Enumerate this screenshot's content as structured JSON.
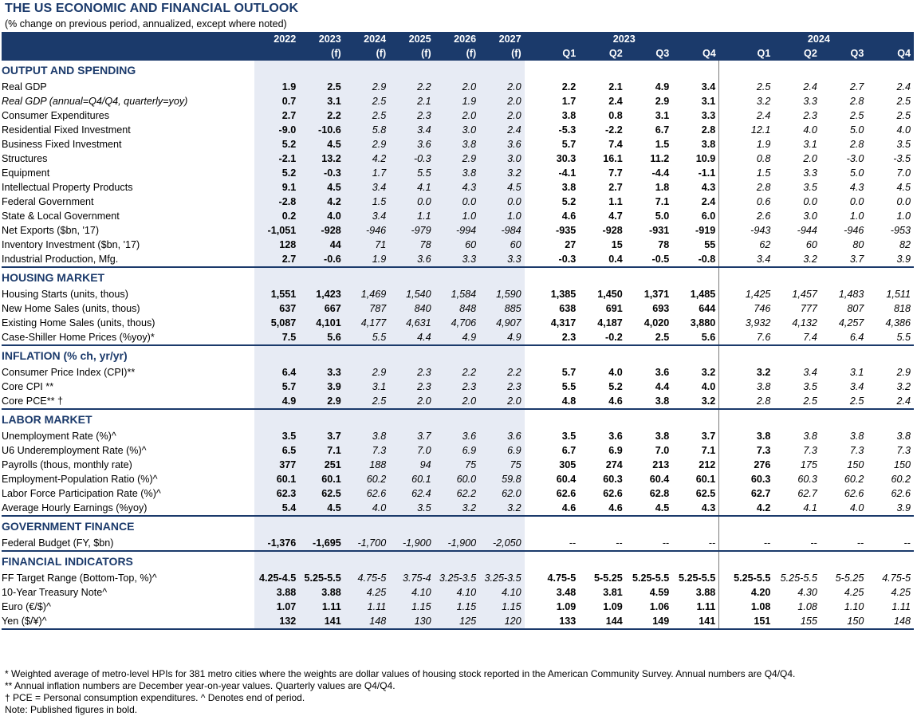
{
  "title": "THE US ECONOMIC AND FINANCIAL OUTLOOK",
  "subtitle": "(% change on previous period, annualized, except where noted)",
  "header": {
    "years": [
      {
        "year": "2022",
        "f": ""
      },
      {
        "year": "2023",
        "f": "(f)"
      },
      {
        "year": "2024",
        "f": "(f)"
      },
      {
        "year": "2025",
        "f": "(f)"
      },
      {
        "year": "2026",
        "f": "(f)"
      },
      {
        "year": "2027",
        "f": "(f)"
      }
    ],
    "q_group_1": "2023",
    "q_group_2": "2024",
    "quarters": [
      "Q1",
      "Q2",
      "Q3",
      "Q4",
      "Q1",
      "Q2",
      "Q3",
      "Q4"
    ]
  },
  "sections": [
    {
      "title": "OUTPUT AND SPENDING",
      "rows": [
        {
          "label": "Real GDP",
          "indent": 1,
          "vals": [
            "1.9",
            "2.5",
            "2.9",
            "2.2",
            "2.0",
            "2.0",
            "2.2",
            "2.1",
            "4.9",
            "3.4",
            "2.5",
            "2.4",
            "2.7",
            "2.4"
          ]
        },
        {
          "label": "Real GDP (annual=Q4/Q4, quarterly=yoy)",
          "indent": 1,
          "italic_label": true,
          "vals": [
            "0.7",
            "3.1",
            "2.5",
            "2.1",
            "1.9",
            "2.0",
            "1.7",
            "2.4",
            "2.9",
            "3.1",
            "3.2",
            "3.3",
            "2.8",
            "2.5"
          ]
        },
        {
          "label": "Consumer Expenditures",
          "indent": 2,
          "vals": [
            "2.7",
            "2.2",
            "2.5",
            "2.3",
            "2.0",
            "2.0",
            "3.8",
            "0.8",
            "3.1",
            "3.3",
            "2.4",
            "2.3",
            "2.5",
            "2.5"
          ]
        },
        {
          "label": "Residential Fixed Investment",
          "indent": 2,
          "vals": [
            "-9.0",
            "-10.6",
            "5.8",
            "3.4",
            "3.0",
            "2.4",
            "-5.3",
            "-2.2",
            "6.7",
            "2.8",
            "12.1",
            "4.0",
            "5.0",
            "4.0"
          ]
        },
        {
          "label": "Business Fixed Investment",
          "indent": 2,
          "vals": [
            "5.2",
            "4.5",
            "2.9",
            "3.6",
            "3.8",
            "3.6",
            "5.7",
            "7.4",
            "1.5",
            "3.8",
            "1.9",
            "3.1",
            "2.8",
            "3.5"
          ]
        },
        {
          "label": "Structures",
          "indent": 3,
          "vals": [
            "-2.1",
            "13.2",
            "4.2",
            "-0.3",
            "2.9",
            "3.0",
            "30.3",
            "16.1",
            "11.2",
            "10.9",
            "0.8",
            "2.0",
            "-3.0",
            "-3.5"
          ]
        },
        {
          "label": "Equipment",
          "indent": 3,
          "vals": [
            "5.2",
            "-0.3",
            "1.7",
            "5.5",
            "3.8",
            "3.2",
            "-4.1",
            "7.7",
            "-4.4",
            "-1.1",
            "1.5",
            "3.3",
            "5.0",
            "7.0"
          ]
        },
        {
          "label": "Intellectual Property Products",
          "indent": 3,
          "vals": [
            "9.1",
            "4.5",
            "3.4",
            "4.1",
            "4.3",
            "4.5",
            "3.8",
            "2.7",
            "1.8",
            "4.3",
            "2.8",
            "3.5",
            "4.3",
            "4.5"
          ]
        },
        {
          "label": "Federal Government",
          "indent": 2,
          "vals": [
            "-2.8",
            "4.2",
            "1.5",
            "0.0",
            "0.0",
            "0.0",
            "5.2",
            "1.1",
            "7.1",
            "2.4",
            "0.6",
            "0.0",
            "0.0",
            "0.0"
          ]
        },
        {
          "label": "State & Local Government",
          "indent": 2,
          "vals": [
            "0.2",
            "4.0",
            "3.4",
            "1.1",
            "1.0",
            "1.0",
            "4.6",
            "4.7",
            "5.0",
            "6.0",
            "2.6",
            "3.0",
            "1.0",
            "1.0"
          ]
        },
        {
          "label": "Net Exports ($bn, '17)",
          "indent": 2,
          "vals": [
            "-1,051",
            "-928",
            "-946",
            "-979",
            "-994",
            "-984",
            "-935",
            "-928",
            "-931",
            "-919",
            "-943",
            "-944",
            "-946",
            "-953"
          ]
        },
        {
          "label": "Inventory Investment ($bn, '17)",
          "indent": 2,
          "vals": [
            "128",
            "44",
            "71",
            "78",
            "60",
            "60",
            "27",
            "15",
            "78",
            "55",
            "62",
            "60",
            "80",
            "82"
          ]
        },
        {
          "label": "Industrial Production, Mfg.",
          "indent": 1,
          "vals": [
            "2.7",
            "-0.6",
            "1.9",
            "3.6",
            "3.3",
            "3.3",
            "-0.3",
            "0.4",
            "-0.5",
            "-0.8",
            "3.4",
            "3.2",
            "3.7",
            "3.9"
          ]
        }
      ]
    },
    {
      "title": "HOUSING MARKET",
      "rows": [
        {
          "label": "Housing Starts (units, thous)",
          "indent": 1,
          "vals": [
            "1,551",
            "1,423",
            "1,469",
            "1,540",
            "1,584",
            "1,590",
            "1,385",
            "1,450",
            "1,371",
            "1,485",
            "1,425",
            "1,457",
            "1,483",
            "1,511"
          ]
        },
        {
          "label": "New Home Sales (units, thous)",
          "indent": 1,
          "vals": [
            "637",
            "667",
            "787",
            "840",
            "848",
            "885",
            "638",
            "691",
            "693",
            "644",
            "746",
            "777",
            "807",
            "818"
          ]
        },
        {
          "label": "Existing Home Sales (units, thous)",
          "indent": 1,
          "vals": [
            "5,087",
            "4,101",
            "4,177",
            "4,631",
            "4,706",
            "4,907",
            "4,317",
            "4,187",
            "4,020",
            "3,880",
            "3,932",
            "4,132",
            "4,257",
            "4,386"
          ]
        },
        {
          "label": "Case-Shiller Home Prices (%yoy)*",
          "indent": 1,
          "vals": [
            "7.5",
            "5.6",
            "5.5",
            "4.4",
            "4.9",
            "4.9",
            "2.3",
            "-0.2",
            "2.5",
            "5.6",
            "7.6",
            "7.4",
            "6.4",
            "5.5"
          ]
        }
      ]
    },
    {
      "title": "INFLATION (% ch, yr/yr)",
      "rows": [
        {
          "label": "Consumer Price Index (CPI)**",
          "indent": 1,
          "bold_q24_first": true,
          "vals": [
            "6.4",
            "3.3",
            "2.9",
            "2.3",
            "2.2",
            "2.2",
            "5.7",
            "4.0",
            "3.6",
            "3.2",
            "3.2",
            "3.4",
            "3.1",
            "2.9"
          ]
        },
        {
          "label": "Core CPI **",
          "indent": 1,
          "vals": [
            "5.7",
            "3.9",
            "3.1",
            "2.3",
            "2.3",
            "2.3",
            "5.5",
            "5.2",
            "4.4",
            "4.0",
            "3.8",
            "3.5",
            "3.4",
            "3.2"
          ]
        },
        {
          "label": "Core PCE** †",
          "indent": 1,
          "vals": [
            "4.9",
            "2.9",
            "2.5",
            "2.0",
            "2.0",
            "2.0",
            "4.8",
            "4.6",
            "3.8",
            "3.2",
            "2.8",
            "2.5",
            "2.5",
            "2.4"
          ]
        }
      ]
    },
    {
      "title": "LABOR MARKET",
      "rows": [
        {
          "label": "Unemployment Rate (%)^",
          "indent": 1,
          "bold_q24_first": true,
          "vals": [
            "3.5",
            "3.7",
            "3.8",
            "3.7",
            "3.6",
            "3.6",
            "3.5",
            "3.6",
            "3.8",
            "3.7",
            "3.8",
            "3.8",
            "3.8",
            "3.8"
          ]
        },
        {
          "label": "U6 Underemployment Rate (%)^",
          "indent": 1,
          "bold_q24_first": true,
          "vals": [
            "6.5",
            "7.1",
            "7.3",
            "7.0",
            "6.9",
            "6.9",
            "6.7",
            "6.9",
            "7.0",
            "7.1",
            "7.3",
            "7.3",
            "7.3",
            "7.3"
          ]
        },
        {
          "label": "Payrolls (thous, monthly rate)",
          "indent": 1,
          "bold_q24_first": true,
          "vals": [
            "377",
            "251",
            "188",
            "94",
            "75",
            "75",
            "305",
            "274",
            "213",
            "212",
            "276",
            "175",
            "150",
            "150"
          ]
        },
        {
          "label": "Employment-Population Ratio (%)^",
          "indent": 1,
          "bold_q24_first": true,
          "vals": [
            "60.1",
            "60.1",
            "60.2",
            "60.1",
            "60.0",
            "59.8",
            "60.4",
            "60.3",
            "60.4",
            "60.1",
            "60.3",
            "60.3",
            "60.2",
            "60.2"
          ]
        },
        {
          "label": "Labor Force Participation Rate (%)^",
          "indent": 1,
          "bold_q24_first": true,
          "vals": [
            "62.3",
            "62.5",
            "62.6",
            "62.4",
            "62.2",
            "62.0",
            "62.6",
            "62.6",
            "62.8",
            "62.5",
            "62.7",
            "62.7",
            "62.6",
            "62.6"
          ]
        },
        {
          "label": "Average Hourly Earnings (%yoy)",
          "indent": 1,
          "bold_q24_first": true,
          "vals": [
            "5.4",
            "4.5",
            "4.0",
            "3.5",
            "3.2",
            "3.2",
            "4.6",
            "4.6",
            "4.5",
            "4.3",
            "4.2",
            "4.1",
            "4.0",
            "3.9"
          ]
        }
      ]
    },
    {
      "title": "GOVERNMENT FINANCE",
      "rows": [
        {
          "label": "Federal Budget (FY, $bn)",
          "indent": 1,
          "quarter_plain": true,
          "vals": [
            "-1,376",
            "-1,695",
            "-1,700",
            "-1,900",
            "-1,900",
            "-2,050",
            "--",
            "--",
            "--",
            "--",
            "--",
            "--",
            "--",
            "--"
          ]
        }
      ]
    },
    {
      "title": "FINANCIAL INDICATORS",
      "rows": [
        {
          "label": "FF Target Range (Bottom-Top, %)^",
          "indent": 1,
          "bold_q24_first": true,
          "vals": [
            "4.25-4.5",
            "5.25-5.5",
            "4.75-5",
            "3.75-4",
            "3.25-3.5",
            "3.25-3.5",
            "4.75-5",
            "5-5.25",
            "5.25-5.5",
            "5.25-5.5",
            "5.25-5.5",
            "5.25-5.5",
            "5-5.25",
            "4.75-5"
          ]
        },
        {
          "label": "10-Year Treasury Note^",
          "indent": 1,
          "bold_q24_first": true,
          "vals": [
            "3.88",
            "3.88",
            "4.25",
            "4.10",
            "4.10",
            "4.10",
            "3.48",
            "3.81",
            "4.59",
            "3.88",
            "4.20",
            "4.30",
            "4.25",
            "4.25"
          ]
        },
        {
          "label": "Euro (€/$)^",
          "indent": 1,
          "bold_q24_first": true,
          "vals": [
            "1.07",
            "1.11",
            "1.11",
            "1.15",
            "1.15",
            "1.15",
            "1.09",
            "1.09",
            "1.06",
            "1.11",
            "1.08",
            "1.08",
            "1.10",
            "1.11"
          ]
        },
        {
          "label": "Yen ($/¥)^",
          "indent": 1,
          "bold_q24_first": true,
          "vals": [
            "132",
            "141",
            "148",
            "130",
            "125",
            "120",
            "133",
            "144",
            "149",
            "141",
            "151",
            "155",
            "150",
            "148"
          ]
        }
      ]
    }
  ],
  "notes": [
    "* Weighted average of metro-level HPIs for 381 metro cities where the weights are dollar values of housing stock reported in the American Community Survey. Annual numbers are Q4/Q4.",
    "** Annual inflation numbers are December year-on-year values. Quarterly values are Q4/Q4.",
    "† PCE = Personal consumption expenditures.  ^ Denotes end of period.",
    "Note: Published figures in bold."
  ]
}
